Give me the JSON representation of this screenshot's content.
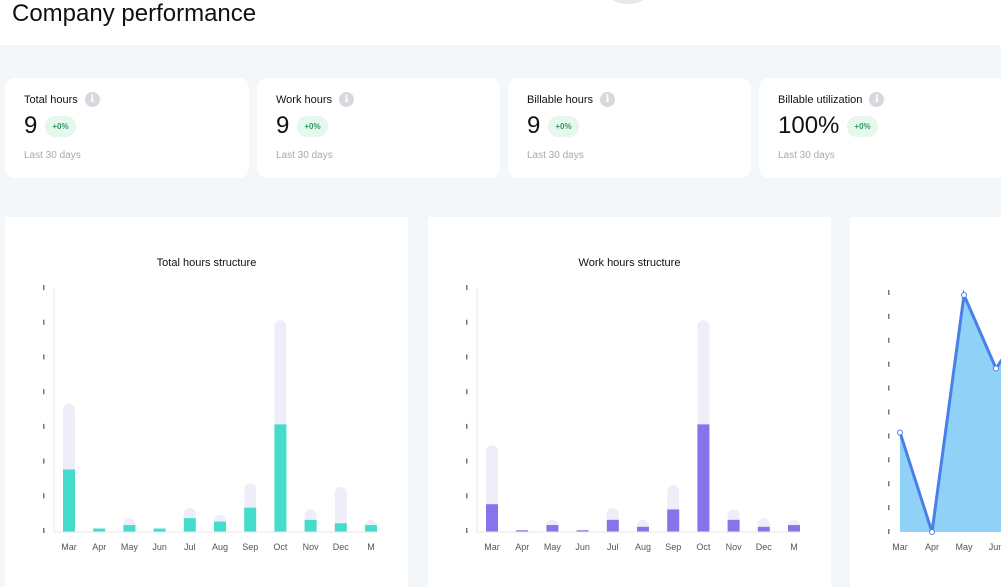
{
  "page": {
    "title": "Company performance"
  },
  "stats": [
    {
      "label": "Total hours",
      "value": "9",
      "badge": "+0%",
      "period": "Last 30 days"
    },
    {
      "label": "Work hours",
      "value": "9",
      "badge": "+0%",
      "period": "Last 30 days"
    },
    {
      "label": "Billable hours",
      "value": "9",
      "badge": "+0%",
      "period": "Last 30 days"
    },
    {
      "label": "Billable utilization",
      "value": "100%",
      "badge": "+0%",
      "period": "Last 30 days"
    }
  ],
  "info_icon": "info-icon",
  "colors": {
    "bar_track": "#eeeef8",
    "total_bar": "#45dccb",
    "work_bar": "#8773ea",
    "area_fill": "#8fd1f7",
    "area_line": "#4a7fea",
    "badge_bg": "#e6f7ee",
    "badge_text": "#2e9a5f"
  },
  "chart_data": [
    {
      "type": "bar",
      "title": "Total hours structure",
      "categories": [
        "Mar",
        "Apr",
        "May",
        "Jun",
        "Jul",
        "Aug",
        "Sep",
        "Oct",
        "Nov",
        "Dec",
        "M"
      ],
      "series": [
        {
          "values": [
            1.8,
            0.1,
            0.2,
            0.1,
            0.4,
            0.3,
            0.7,
            3.1,
            0.35,
            0.25,
            0.2
          ]
        },
        {
          "values": [
            3.7,
            0.1,
            0.4,
            0.1,
            0.7,
            0.5,
            1.4,
            6.1,
            0.65,
            1.3,
            0.35
          ]
        }
      ],
      "y_tick_labels": [
        "",
        "",
        "",
        "",
        "",
        "",
        "",
        ""
      ],
      "ylim": [
        0,
        7
      ]
    },
    {
      "type": "bar",
      "title": "Work hours structure",
      "categories": [
        "Mar",
        "Apr",
        "May",
        "Jun",
        "Jul",
        "Aug",
        "Sep",
        "Oct",
        "Nov",
        "Dec",
        "M"
      ],
      "series": [
        {
          "values": [
            0.8,
            0.05,
            0.2,
            0.05,
            0.35,
            0.15,
            0.65,
            3.1,
            0.35,
            0.15,
            0.2
          ]
        },
        {
          "values": [
            2.5,
            0.05,
            0.35,
            0.05,
            0.7,
            0.35,
            1.35,
            6.1,
            0.65,
            0.4,
            0.35
          ]
        }
      ],
      "y_tick_labels": [
        "",
        "",
        "",
        "",
        "",
        "",
        "",
        ""
      ],
      "ylim": [
        0,
        7
      ]
    },
    {
      "type": "area",
      "title": "",
      "categories": [
        "Mar",
        "Apr",
        "May",
        "Jun"
      ],
      "values": [
        4.2,
        0,
        10.0,
        6.9
      ],
      "y_tick_labels": [
        "",
        "",
        "",
        "",
        "",
        "",
        "",
        "",
        "",
        "",
        ""
      ],
      "ylim": [
        0,
        10
      ]
    }
  ]
}
